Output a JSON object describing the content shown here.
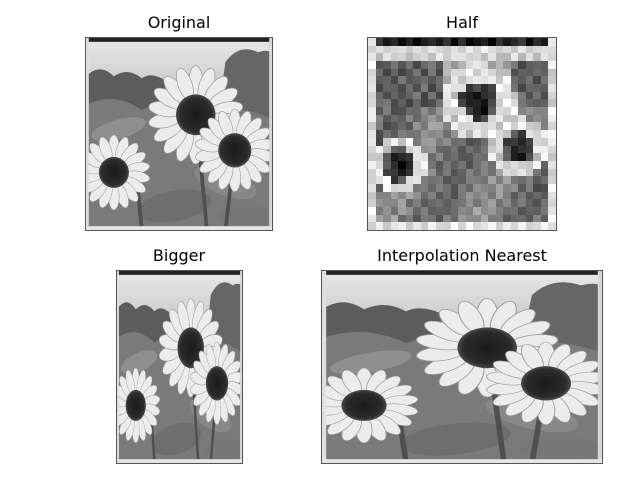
{
  "figure": {
    "panels": [
      {
        "id": "original",
        "title": "Original"
      },
      {
        "id": "half",
        "title": "Half"
      },
      {
        "id": "bigger",
        "title": "Bigger"
      },
      {
        "id": "nearest",
        "title": "Interpolation Nearest"
      }
    ]
  }
}
